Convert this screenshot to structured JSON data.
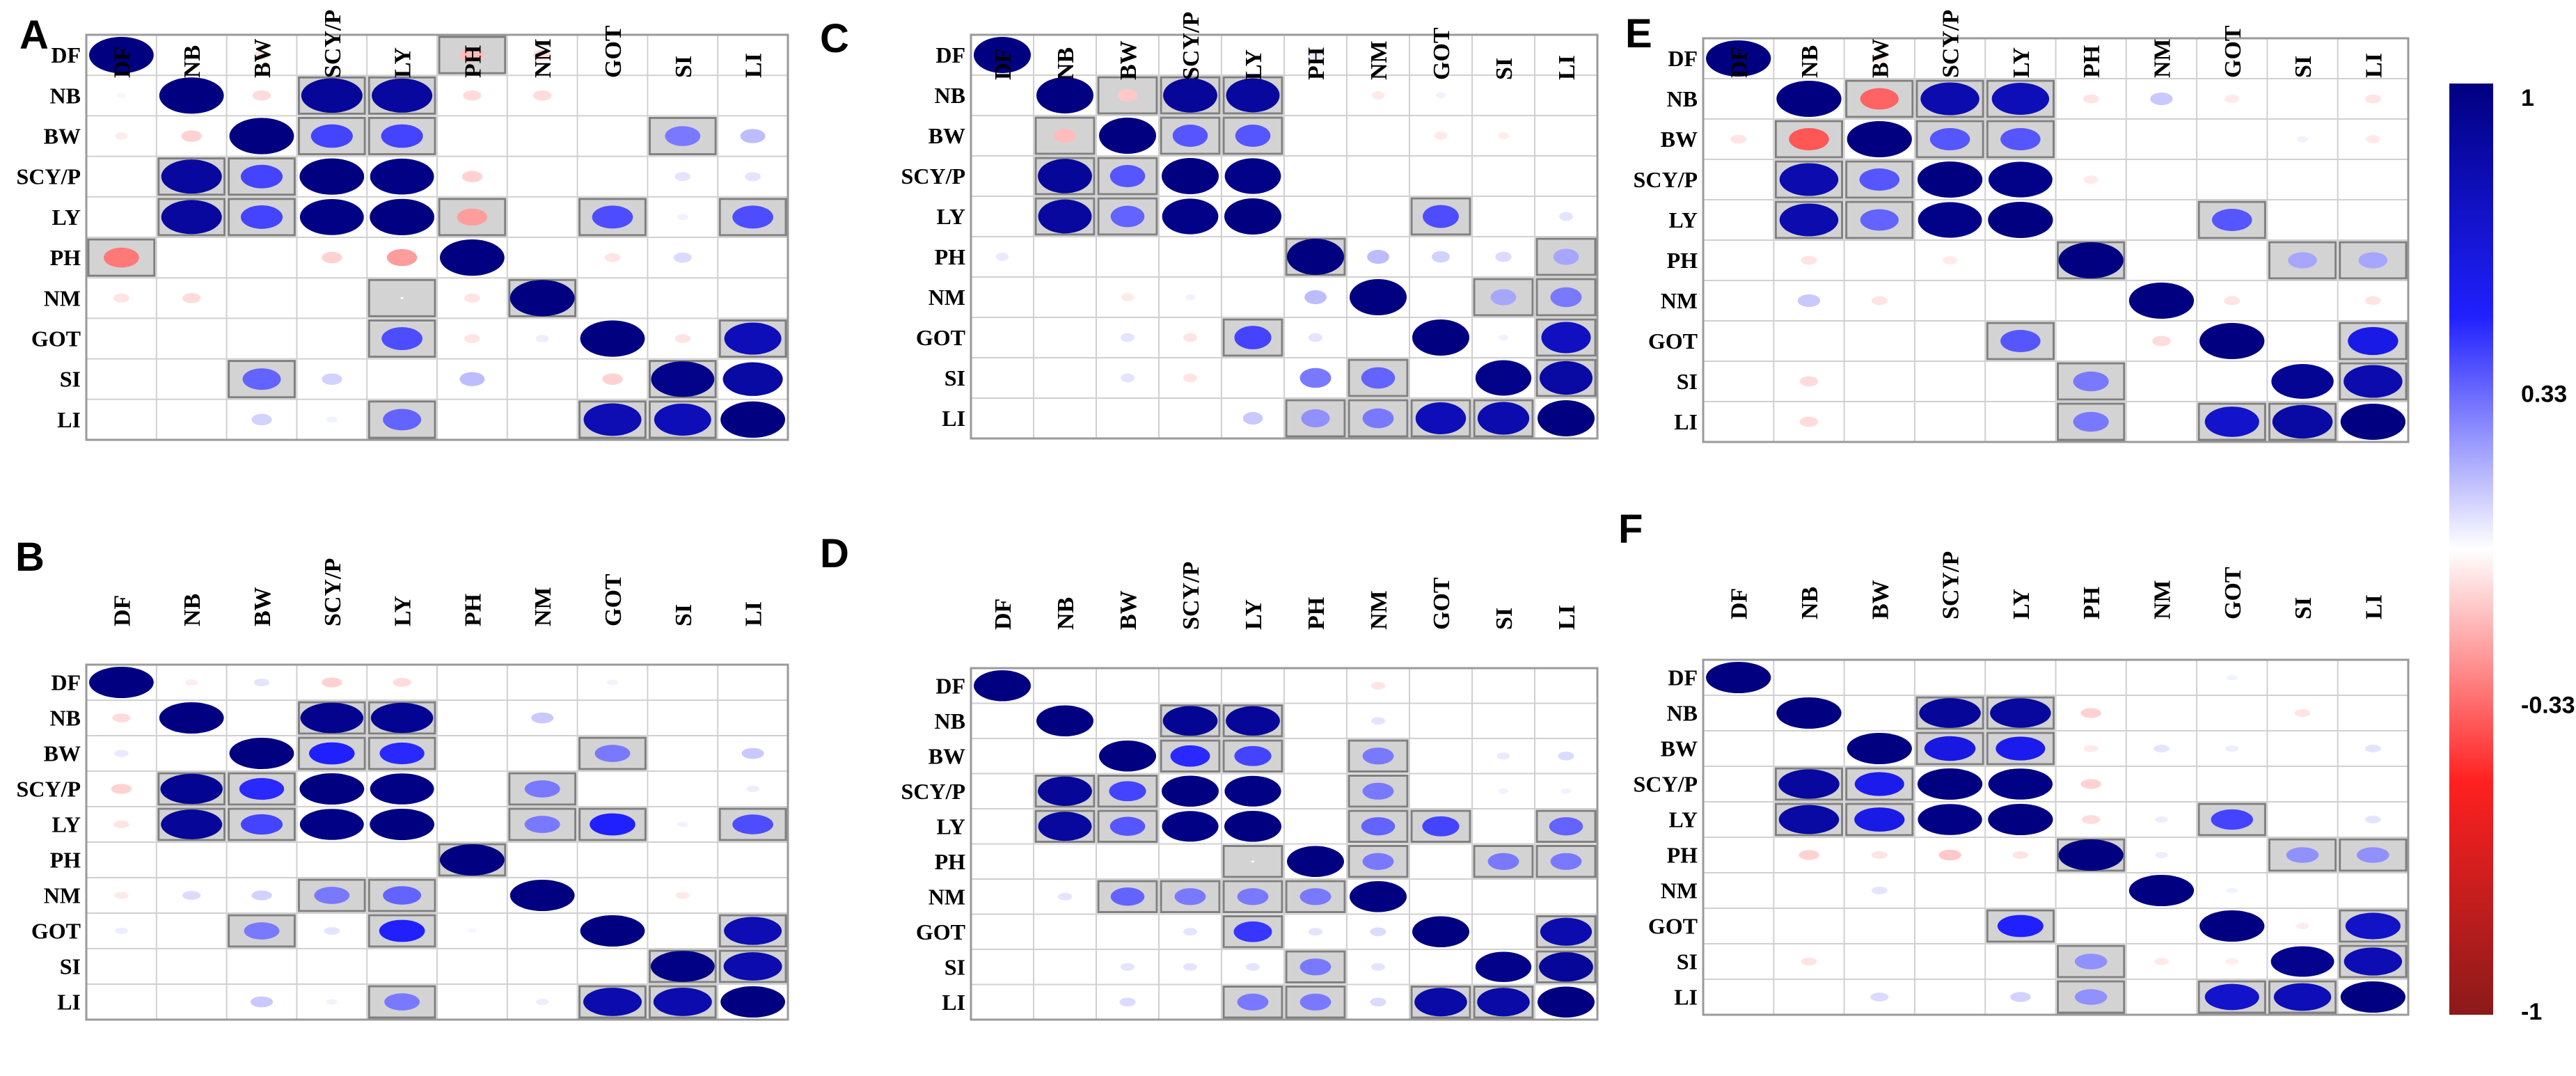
{
  "chart_data": {
    "type": "heatmap",
    "variables": [
      "DF",
      "NB",
      "BW",
      "SCY/P",
      "LY",
      "PH",
      "NM",
      "GOT",
      "SI",
      "LI"
    ],
    "colorbar": {
      "ticks": [
        "1",
        "0.33",
        "-0.33",
        "-1"
      ],
      "range": [
        -1,
        1
      ],
      "colors": {
        "neg": "#8b1a1a",
        "mid_neg": "#ff2020",
        "zero": "#ffffff",
        "mid_pos": "#2020ff",
        "pos": "#000080"
      }
    },
    "panels": [
      {
        "label": "A",
        "matrix": [
          [
            1,
            0.02,
            -0.06,
            0,
            0,
            -0.15,
            -0.08,
            0,
            0,
            0
          ],
          [
            0.02,
            1,
            -0.08,
            0.9,
            0.88,
            -0.08,
            -0.08,
            0,
            0,
            0
          ],
          [
            -0.04,
            -0.1,
            1,
            0.42,
            0.42,
            0,
            0,
            0,
            0.3,
            0.15
          ],
          [
            0,
            0.88,
            0.42,
            1,
            0.98,
            -0.1,
            0,
            0,
            0.06,
            0.06
          ],
          [
            0,
            0.88,
            0.42,
            0.98,
            1,
            -0.22,
            0,
            0.4,
            0.03,
            0.4
          ],
          [
            -0.3,
            0,
            0,
            -0.1,
            -0.22,
            1,
            0,
            -0.06,
            0.08,
            0
          ],
          [
            -0.06,
            -0.08,
            0,
            0,
            0,
            -0.06,
            1,
            0,
            0,
            0
          ],
          [
            0,
            0,
            0,
            0,
            0.4,
            -0.06,
            0.04,
            1,
            -0.06,
            0.78
          ],
          [
            0,
            0,
            0.35,
            0.1,
            0,
            0.15,
            0,
            -0.1,
            0.96,
            0.86
          ],
          [
            0,
            0,
            0.1,
            0.03,
            0.35,
            0,
            0,
            0.8,
            0.78,
            1
          ]
        ],
        "sig": [
          [
            0,
            5
          ],
          [
            1,
            3
          ],
          [
            1,
            4
          ],
          [
            2,
            3
          ],
          [
            2,
            4
          ],
          [
            2,
            8
          ],
          [
            3,
            1
          ],
          [
            3,
            2
          ],
          [
            4,
            1
          ],
          [
            4,
            2
          ],
          [
            4,
            5
          ],
          [
            4,
            7
          ],
          [
            4,
            9
          ],
          [
            5,
            0
          ],
          [
            6,
            4
          ],
          [
            6,
            6
          ],
          [
            7,
            4
          ],
          [
            7,
            9
          ],
          [
            8,
            2
          ],
          [
            8,
            8
          ],
          [
            9,
            4
          ],
          [
            9,
            7
          ],
          [
            9,
            8
          ]
        ]
      },
      {
        "label": "B",
        "matrix": [
          [
            1,
            -0.04,
            0.06,
            -0.1,
            -0.08,
            0,
            0,
            0.03,
            0,
            0
          ],
          [
            -0.08,
            1,
            0,
            0.95,
            0.93,
            0,
            0.12,
            0,
            0,
            0
          ],
          [
            0.05,
            0,
            1,
            0.5,
            0.48,
            0,
            0,
            0.3,
            0,
            0.12
          ],
          [
            -0.1,
            0.93,
            0.48,
            1,
            0.98,
            0,
            0.3,
            0,
            0,
            0.04
          ],
          [
            -0.06,
            0.9,
            0.42,
            0.98,
            1,
            0,
            0.3,
            0.5,
            0.03,
            0.4
          ],
          [
            0,
            0,
            0,
            0,
            0,
            1,
            0,
            0,
            0,
            0
          ],
          [
            -0.05,
            0.08,
            0.1,
            0.3,
            0.35,
            0,
            1,
            0,
            -0.05,
            0
          ],
          [
            0.04,
            0,
            0.3,
            0.06,
            0.5,
            0.02,
            0,
            1,
            0,
            0.8
          ],
          [
            0,
            0,
            0,
            0,
            0,
            0,
            0,
            0,
            0.98,
            0.82
          ],
          [
            0,
            0,
            0.12,
            0.03,
            0.3,
            0,
            0.04,
            0.82,
            0.82,
            1
          ]
        ],
        "sig": [
          [
            1,
            3
          ],
          [
            1,
            4
          ],
          [
            2,
            3
          ],
          [
            2,
            4
          ],
          [
            2,
            7
          ],
          [
            3,
            1
          ],
          [
            3,
            2
          ],
          [
            3,
            6
          ],
          [
            4,
            1
          ],
          [
            4,
            2
          ],
          [
            4,
            6
          ],
          [
            4,
            7
          ],
          [
            4,
            9
          ],
          [
            5,
            5
          ],
          [
            6,
            3
          ],
          [
            6,
            4
          ],
          [
            7,
            2
          ],
          [
            7,
            4
          ],
          [
            7,
            9
          ],
          [
            8,
            8
          ],
          [
            8,
            9
          ],
          [
            9,
            4
          ],
          [
            9,
            7
          ],
          [
            9,
            8
          ]
        ]
      },
      {
        "label": "C",
        "matrix": [
          [
            1,
            0,
            0,
            0,
            0,
            0.05,
            0,
            0,
            0,
            0
          ],
          [
            0,
            1,
            -0.12,
            0.9,
            0.88,
            0,
            -0.05,
            0.03,
            0,
            0
          ],
          [
            0,
            -0.15,
            1,
            0.38,
            0.38,
            0,
            0,
            -0.05,
            -0.04,
            0
          ],
          [
            0,
            0.9,
            0.38,
            1,
            0.97,
            0,
            0,
            0,
            0,
            0
          ],
          [
            0,
            0.88,
            0.35,
            0.97,
            1,
            0,
            0,
            0.4,
            0,
            0.06
          ],
          [
            0.05,
            0,
            0,
            0,
            0,
            1,
            0.15,
            0.1,
            0.08,
            0.2
          ],
          [
            0,
            0,
            -0.05,
            0.03,
            0,
            0.15,
            1,
            0,
            0.2,
            0.3
          ],
          [
            0,
            0,
            0.06,
            -0.06,
            0.42,
            0.06,
            0,
            1,
            0.03,
            0.75
          ],
          [
            0,
            0,
            0.06,
            -0.06,
            0,
            0.3,
            0.35,
            0,
            0.96,
            0.86
          ],
          [
            0,
            0,
            0,
            0,
            0.12,
            0.25,
            0.3,
            0.78,
            0.82,
            1
          ]
        ],
        "sig": [
          [
            1,
            2
          ],
          [
            1,
            3
          ],
          [
            1,
            4
          ],
          [
            2,
            1
          ],
          [
            2,
            3
          ],
          [
            2,
            4
          ],
          [
            3,
            1
          ],
          [
            3,
            2
          ],
          [
            4,
            1
          ],
          [
            4,
            2
          ],
          [
            4,
            7
          ],
          [
            5,
            5
          ],
          [
            5,
            9
          ],
          [
            6,
            8
          ],
          [
            6,
            9
          ],
          [
            7,
            4
          ],
          [
            7,
            9
          ],
          [
            8,
            6
          ],
          [
            8,
            9
          ],
          [
            9,
            5
          ],
          [
            9,
            6
          ],
          [
            9,
            7
          ],
          [
            9,
            8
          ]
        ]
      },
      {
        "label": "D",
        "matrix": [
          [
            1,
            0,
            0,
            0,
            0,
            0,
            -0.06,
            0,
            0,
            0
          ],
          [
            0,
            1,
            0,
            0.92,
            0.9,
            0,
            0.06,
            0,
            0,
            0
          ],
          [
            0,
            0,
            1,
            0.48,
            0.42,
            0,
            0.3,
            0,
            0.05,
            0.08
          ],
          [
            0,
            0.9,
            0.42,
            1,
            0.98,
            0,
            0.3,
            0,
            0.03,
            0.03
          ],
          [
            0,
            0.88,
            0.38,
            0.98,
            1,
            0,
            0.35,
            0.42,
            0,
            0.35
          ],
          [
            0,
            0,
            0,
            0,
            0,
            1,
            0.3,
            0,
            0.3,
            0.3
          ],
          [
            0,
            0.06,
            0.35,
            0.3,
            0.3,
            0.3,
            1,
            0,
            0,
            0
          ],
          [
            0,
            0,
            0,
            0.06,
            0.45,
            0.06,
            0.08,
            1,
            0,
            0.82
          ],
          [
            0,
            0,
            0.06,
            0.06,
            0.06,
            0.3,
            0.06,
            0,
            0.96,
            0.9
          ],
          [
            0,
            0,
            0.08,
            0,
            0.3,
            0.3,
            0.08,
            0.85,
            0.85,
            1
          ]
        ],
        "sig": [
          [
            1,
            3
          ],
          [
            1,
            4
          ],
          [
            2,
            3
          ],
          [
            2,
            4
          ],
          [
            2,
            6
          ],
          [
            3,
            1
          ],
          [
            3,
            2
          ],
          [
            3,
            6
          ],
          [
            4,
            1
          ],
          [
            4,
            2
          ],
          [
            4,
            6
          ],
          [
            4,
            7
          ],
          [
            4,
            9
          ],
          [
            5,
            4
          ],
          [
            5,
            6
          ],
          [
            5,
            8
          ],
          [
            5,
            9
          ],
          [
            6,
            2
          ],
          [
            6,
            3
          ],
          [
            6,
            4
          ],
          [
            6,
            5
          ],
          [
            7,
            4
          ],
          [
            7,
            9
          ],
          [
            8,
            5
          ],
          [
            8,
            9
          ],
          [
            9,
            4
          ],
          [
            9,
            5
          ],
          [
            9,
            7
          ],
          [
            9,
            8
          ]
        ]
      },
      {
        "label": "E",
        "matrix": [
          [
            1,
            0,
            -0.05,
            0,
            0,
            0,
            0,
            0,
            0,
            0
          ],
          [
            0,
            1,
            -0.35,
            0.82,
            0.78,
            -0.06,
            0.12,
            -0.05,
            0,
            -0.06
          ],
          [
            -0.06,
            -0.38,
            1,
            0.38,
            0.38,
            0,
            0,
            0,
            0.03,
            -0.05
          ],
          [
            0,
            0.82,
            0.38,
            1,
            0.97,
            -0.05,
            0,
            0,
            0,
            0
          ],
          [
            0,
            0.82,
            0.35,
            0.97,
            1,
            0,
            0,
            0.38,
            0,
            0
          ],
          [
            0,
            -0.06,
            0,
            -0.05,
            0,
            1,
            0,
            0,
            0.2,
            0.2
          ],
          [
            0,
            0.12,
            -0.06,
            0,
            0,
            0,
            1,
            -0.06,
            0,
            -0.06
          ],
          [
            0,
            0,
            0,
            0,
            0.38,
            0,
            -0.08,
            1,
            0,
            0.6
          ],
          [
            0,
            -0.08,
            0,
            0,
            0,
            0.3,
            0,
            0,
            0.92,
            0.82
          ],
          [
            0,
            -0.08,
            0,
            0,
            0,
            0.3,
            0,
            0.7,
            0.86,
            1
          ]
        ],
        "sig": [
          [
            1,
            2
          ],
          [
            1,
            3
          ],
          [
            1,
            4
          ],
          [
            2,
            1
          ],
          [
            2,
            3
          ],
          [
            2,
            4
          ],
          [
            3,
            1
          ],
          [
            3,
            2
          ],
          [
            4,
            1
          ],
          [
            4,
            2
          ],
          [
            4,
            7
          ],
          [
            5,
            5
          ],
          [
            5,
            8
          ],
          [
            5,
            9
          ],
          [
            7,
            4
          ],
          [
            7,
            9
          ],
          [
            8,
            5
          ],
          [
            8,
            9
          ],
          [
            9,
            5
          ],
          [
            9,
            7
          ],
          [
            9,
            8
          ]
        ]
      },
      {
        "label": "F",
        "matrix": [
          [
            1,
            0,
            0,
            0,
            0,
            0,
            0,
            0.03,
            0,
            0
          ],
          [
            0,
            1,
            0,
            0.9,
            0.88,
            -0.1,
            0,
            0,
            -0.06,
            0
          ],
          [
            0,
            0,
            1,
            0.62,
            0.58,
            -0.05,
            0.06,
            0.04,
            0,
            0.06
          ],
          [
            0,
            0.88,
            0.58,
            1,
            0.98,
            -0.1,
            0,
            0,
            0,
            0
          ],
          [
            0,
            0.86,
            0.6,
            0.98,
            1,
            -0.08,
            0.04,
            0.42,
            0,
            0.06
          ],
          [
            0,
            -0.1,
            -0.06,
            -0.12,
            -0.06,
            1,
            0.04,
            0,
            0.25,
            0.25
          ],
          [
            0,
            0,
            0.06,
            0,
            0,
            0,
            1,
            0.03,
            0,
            0
          ],
          [
            0,
            0,
            0,
            0,
            0.5,
            0,
            0,
            1,
            -0.04,
            0.72
          ],
          [
            0,
            -0.06,
            0,
            0,
            0,
            0.25,
            -0.05,
            -0.04,
            0.95,
            0.8
          ],
          [
            0,
            0,
            0.08,
            0,
            0.1,
            0.25,
            0,
            0.7,
            0.78,
            1
          ]
        ],
        "sig": [
          [
            1,
            3
          ],
          [
            1,
            4
          ],
          [
            2,
            3
          ],
          [
            2,
            4
          ],
          [
            3,
            1
          ],
          [
            3,
            2
          ],
          [
            4,
            1
          ],
          [
            4,
            2
          ],
          [
            4,
            7
          ],
          [
            5,
            5
          ],
          [
            5,
            8
          ],
          [
            5,
            9
          ],
          [
            7,
            4
          ],
          [
            7,
            9
          ],
          [
            8,
            5
          ],
          [
            8,
            9
          ],
          [
            9,
            5
          ],
          [
            9,
            7
          ],
          [
            9,
            8
          ]
        ]
      }
    ]
  }
}
